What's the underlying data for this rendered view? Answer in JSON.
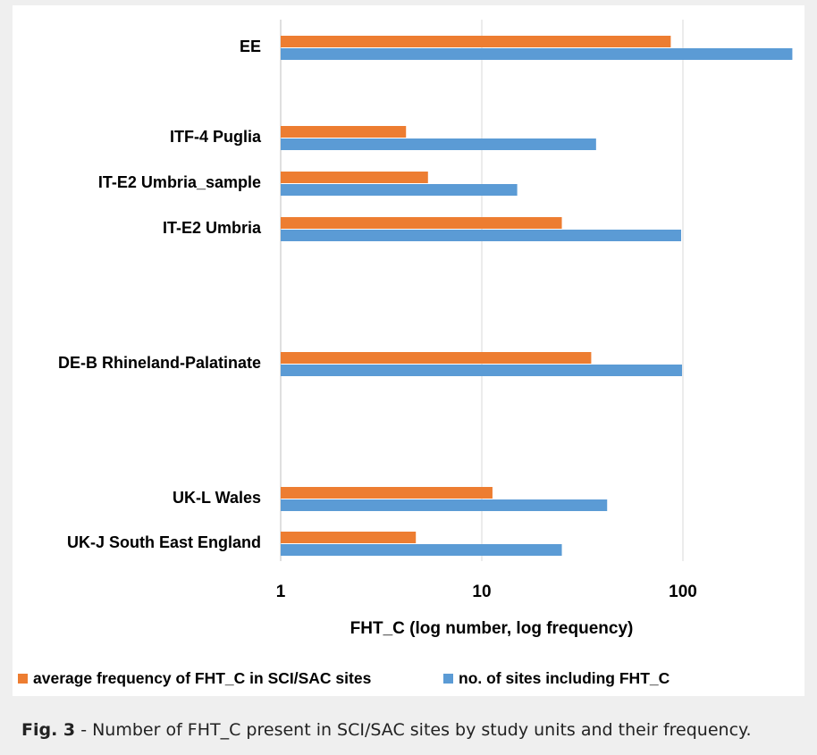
{
  "chart_data": {
    "type": "bar",
    "orientation": "horizontal",
    "x_scale": "log",
    "xlabel": "FHT_C (log  number, log frequency)",
    "xlim": [
      1,
      400
    ],
    "xticks": [
      1,
      10,
      100
    ],
    "xtick_labels": [
      "1",
      "10",
      "100"
    ],
    "grid": "vertical",
    "legend_position": "bottom",
    "categories": [
      "EE",
      "ITF-4 Puglia",
      "IT-E2 Umbria_sample",
      "IT-E2 Umbria",
      "DE-B Rhineland-Palatinate",
      "UK-L Wales",
      "UK-J South East England"
    ],
    "series": [
      {
        "name": "average frequency of FHT_C in SCI/SAC sites",
        "color": "#ed7d31",
        "values": [
          87,
          4.2,
          5.4,
          25,
          35,
          11.3,
          4.7
        ]
      },
      {
        "name": "no. of  sites  including FHT_C",
        "color": "#5b9bd5",
        "values": [
          350,
          37,
          15,
          98,
          99,
          42,
          25
        ]
      }
    ]
  },
  "caption": {
    "label": "Fig. 3",
    "text": " - Number of FHT_C present in SCI/SAC sites by study units and their frequency."
  }
}
